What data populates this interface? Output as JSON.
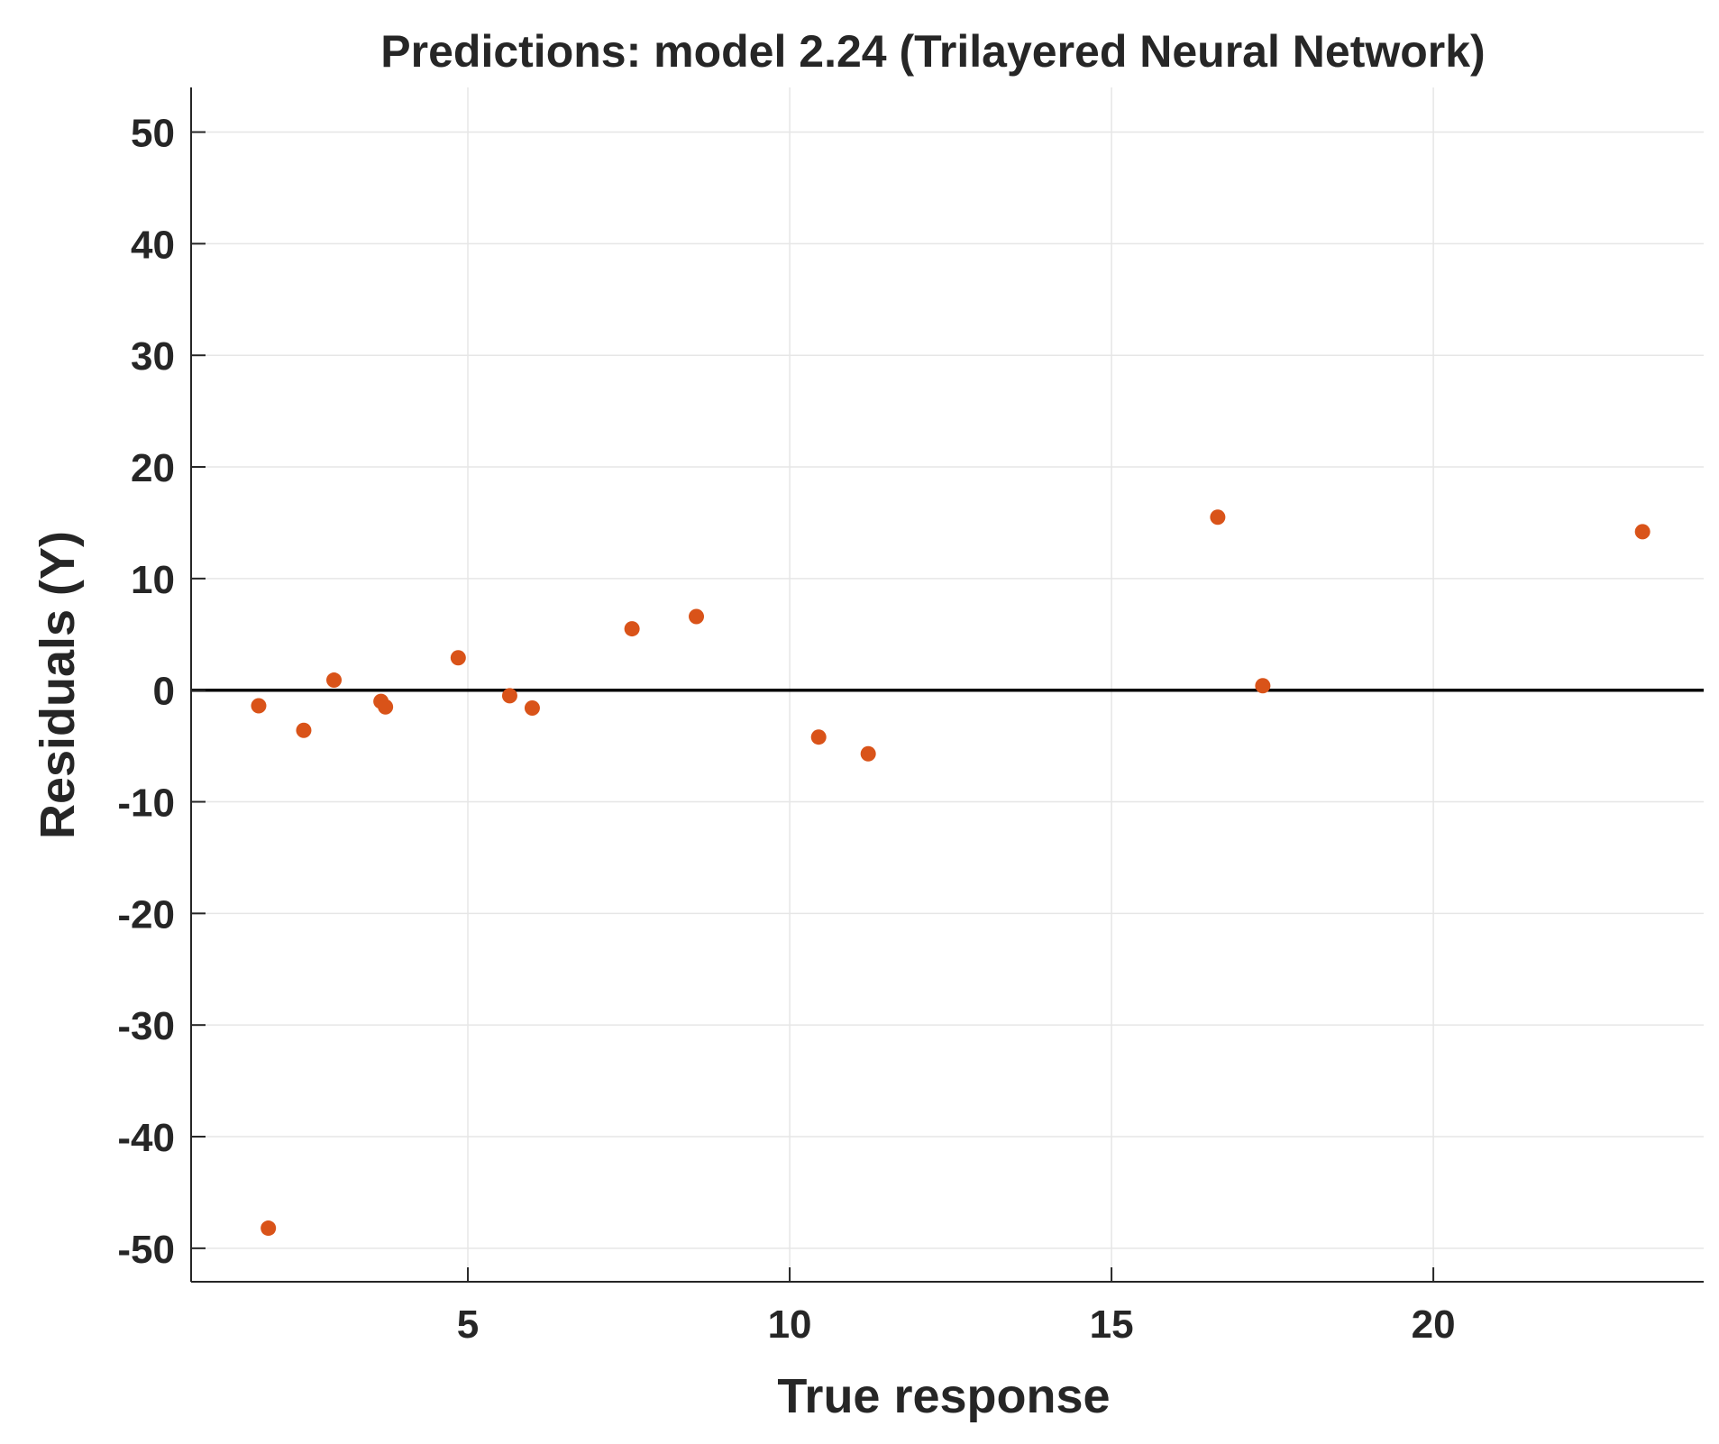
{
  "chart_data": {
    "type": "scatter",
    "title": "Predictions: model 2.24 (Trilayered Neural Network)",
    "xlabel": "True response",
    "ylabel": "Residuals (Y)",
    "xlim": [
      0.7,
      24.2
    ],
    "ylim": [
      -53,
      54
    ],
    "xticks": [
      5,
      10,
      15,
      20
    ],
    "yticks": [
      -50,
      -40,
      -30,
      -20,
      -10,
      0,
      10,
      20,
      30,
      40,
      50
    ],
    "grid": true,
    "reference_line": 0,
    "marker_color": "#D95319",
    "points": [
      {
        "x": 1.75,
        "y": -1.4
      },
      {
        "x": 1.9,
        "y": -48.2
      },
      {
        "x": 2.45,
        "y": -3.6
      },
      {
        "x": 2.92,
        "y": 0.9
      },
      {
        "x": 3.65,
        "y": -1.0
      },
      {
        "x": 3.72,
        "y": -1.5
      },
      {
        "x": 4.85,
        "y": 2.9
      },
      {
        "x": 5.65,
        "y": -0.5
      },
      {
        "x": 6.0,
        "y": -1.6
      },
      {
        "x": 7.55,
        "y": 5.5
      },
      {
        "x": 8.55,
        "y": 6.6
      },
      {
        "x": 10.45,
        "y": -4.2
      },
      {
        "x": 11.22,
        "y": -5.7
      },
      {
        "x": 16.65,
        "y": 15.5
      },
      {
        "x": 17.35,
        "y": 0.4
      },
      {
        "x": 23.25,
        "y": 14.2
      }
    ]
  }
}
